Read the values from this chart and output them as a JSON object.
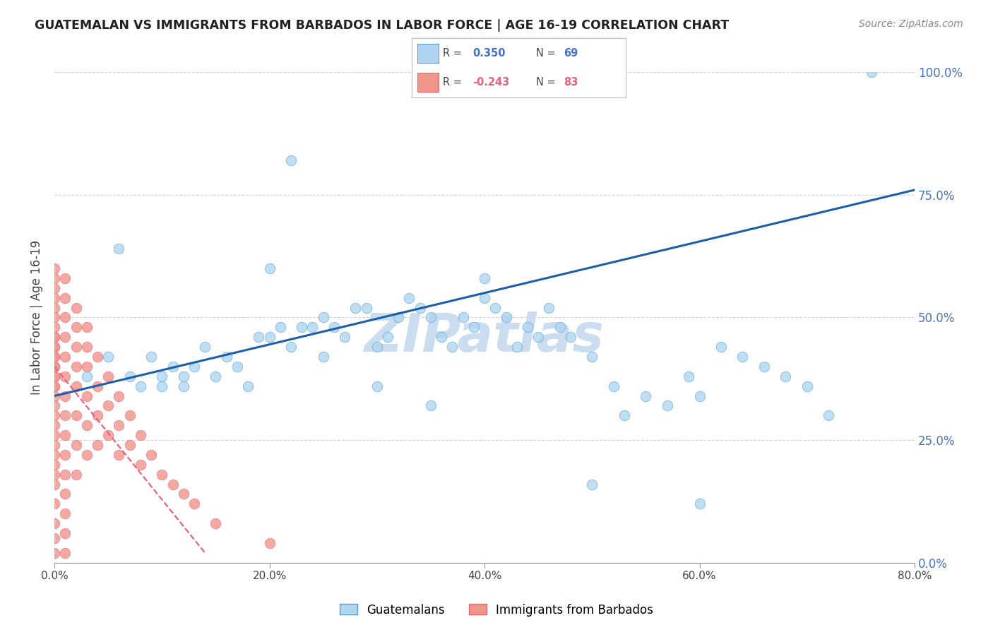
{
  "title": "GUATEMALAN VS IMMIGRANTS FROM BARBADOS IN LABOR FORCE | AGE 16-19 CORRELATION CHART",
  "source": "Source: ZipAtlas.com",
  "ylabel": "In Labor Force | Age 16-19",
  "xlabel_ticks": [
    "0.0%",
    "20.0%",
    "40.0%",
    "60.0%",
    "80.0%"
  ],
  "xlabel_vals": [
    0.0,
    0.2,
    0.4,
    0.6,
    0.8
  ],
  "ylabel_ticks": [
    "0.0%",
    "25.0%",
    "50.0%",
    "75.0%",
    "100.0%"
  ],
  "ylabel_vals": [
    0.0,
    0.25,
    0.5,
    0.75,
    1.0
  ],
  "xlim": [
    0.0,
    0.8
  ],
  "ylim": [
    0.0,
    1.0
  ],
  "blue_R": "0.350",
  "blue_N": "69",
  "pink_R": "-0.243",
  "pink_N": "83",
  "blue_color": "#AED6F1",
  "pink_color": "#F1948A",
  "blue_edge": "#5B9BD5",
  "pink_edge": "#E8627A",
  "trend_blue": "#1A5FA8",
  "trend_pink": "#E8627A",
  "watermark": "ZIPatlas",
  "watermark_color": "#CADCF0",
  "legend_label_blue": "Guatemalans",
  "legend_label_pink": "Immigrants from Barbados",
  "blue_scatter_x": [
    0.22,
    0.05,
    0.07,
    0.08,
    0.09,
    0.1,
    0.1,
    0.11,
    0.12,
    0.12,
    0.13,
    0.14,
    0.15,
    0.16,
    0.17,
    0.18,
    0.19,
    0.2,
    0.21,
    0.22,
    0.23,
    0.24,
    0.25,
    0.26,
    0.27,
    0.28,
    0.29,
    0.3,
    0.31,
    0.32,
    0.33,
    0.34,
    0.35,
    0.36,
    0.37,
    0.38,
    0.39,
    0.4,
    0.41,
    0.42,
    0.43,
    0.44,
    0.45,
    0.46,
    0.47,
    0.48,
    0.5,
    0.52,
    0.53,
    0.55,
    0.57,
    0.59,
    0.6,
    0.62,
    0.64,
    0.66,
    0.68,
    0.7,
    0.72,
    0.06,
    0.2,
    0.25,
    0.3,
    0.35,
    0.4,
    0.5,
    0.6,
    0.76,
    0.03
  ],
  "blue_scatter_y": [
    0.82,
    0.42,
    0.38,
    0.36,
    0.42,
    0.36,
    0.38,
    0.4,
    0.38,
    0.36,
    0.4,
    0.44,
    0.38,
    0.42,
    0.4,
    0.36,
    0.46,
    0.46,
    0.48,
    0.44,
    0.48,
    0.48,
    0.5,
    0.48,
    0.46,
    0.52,
    0.52,
    0.44,
    0.46,
    0.5,
    0.54,
    0.52,
    0.5,
    0.46,
    0.44,
    0.5,
    0.48,
    0.54,
    0.52,
    0.5,
    0.44,
    0.48,
    0.46,
    0.52,
    0.48,
    0.46,
    0.42,
    0.36,
    0.3,
    0.34,
    0.32,
    0.38,
    0.34,
    0.44,
    0.42,
    0.4,
    0.38,
    0.36,
    0.3,
    0.64,
    0.6,
    0.42,
    0.36,
    0.32,
    0.58,
    0.16,
    0.12,
    1.0,
    0.38
  ],
  "pink_scatter_x": [
    0.0,
    0.0,
    0.0,
    0.0,
    0.0,
    0.0,
    0.0,
    0.0,
    0.0,
    0.0,
    0.0,
    0.0,
    0.0,
    0.0,
    0.0,
    0.0,
    0.0,
    0.0,
    0.0,
    0.0,
    0.0,
    0.0,
    0.0,
    0.0,
    0.0,
    0.0,
    0.0,
    0.0,
    0.0,
    0.0,
    0.0,
    0.0,
    0.0,
    0.01,
    0.01,
    0.01,
    0.01,
    0.01,
    0.01,
    0.01,
    0.01,
    0.01,
    0.01,
    0.01,
    0.01,
    0.01,
    0.01,
    0.01,
    0.02,
    0.02,
    0.02,
    0.02,
    0.02,
    0.02,
    0.02,
    0.02,
    0.03,
    0.03,
    0.03,
    0.03,
    0.03,
    0.03,
    0.04,
    0.04,
    0.04,
    0.04,
    0.05,
    0.05,
    0.05,
    0.06,
    0.06,
    0.06,
    0.07,
    0.07,
    0.08,
    0.08,
    0.09,
    0.1,
    0.11,
    0.12,
    0.13,
    0.15,
    0.2
  ],
  "pink_scatter_y": [
    0.6,
    0.58,
    0.56,
    0.54,
    0.52,
    0.5,
    0.48,
    0.46,
    0.44,
    0.42,
    0.4,
    0.38,
    0.36,
    0.34,
    0.32,
    0.3,
    0.28,
    0.24,
    0.2,
    0.16,
    0.12,
    0.08,
    0.05,
    0.02,
    0.36,
    0.38,
    0.4,
    0.42,
    0.44,
    0.46,
    0.26,
    0.22,
    0.18,
    0.58,
    0.54,
    0.5,
    0.46,
    0.42,
    0.38,
    0.34,
    0.3,
    0.26,
    0.22,
    0.18,
    0.14,
    0.1,
    0.06,
    0.02,
    0.52,
    0.48,
    0.44,
    0.4,
    0.36,
    0.3,
    0.24,
    0.18,
    0.48,
    0.44,
    0.4,
    0.34,
    0.28,
    0.22,
    0.42,
    0.36,
    0.3,
    0.24,
    0.38,
    0.32,
    0.26,
    0.34,
    0.28,
    0.22,
    0.3,
    0.24,
    0.26,
    0.2,
    0.22,
    0.18,
    0.16,
    0.14,
    0.12,
    0.08,
    0.04
  ],
  "blue_trend_x": [
    0.0,
    0.8
  ],
  "blue_trend_y": [
    0.34,
    0.76
  ],
  "pink_trend_x": [
    0.0,
    0.14
  ],
  "pink_trend_y": [
    0.4,
    0.02
  ]
}
